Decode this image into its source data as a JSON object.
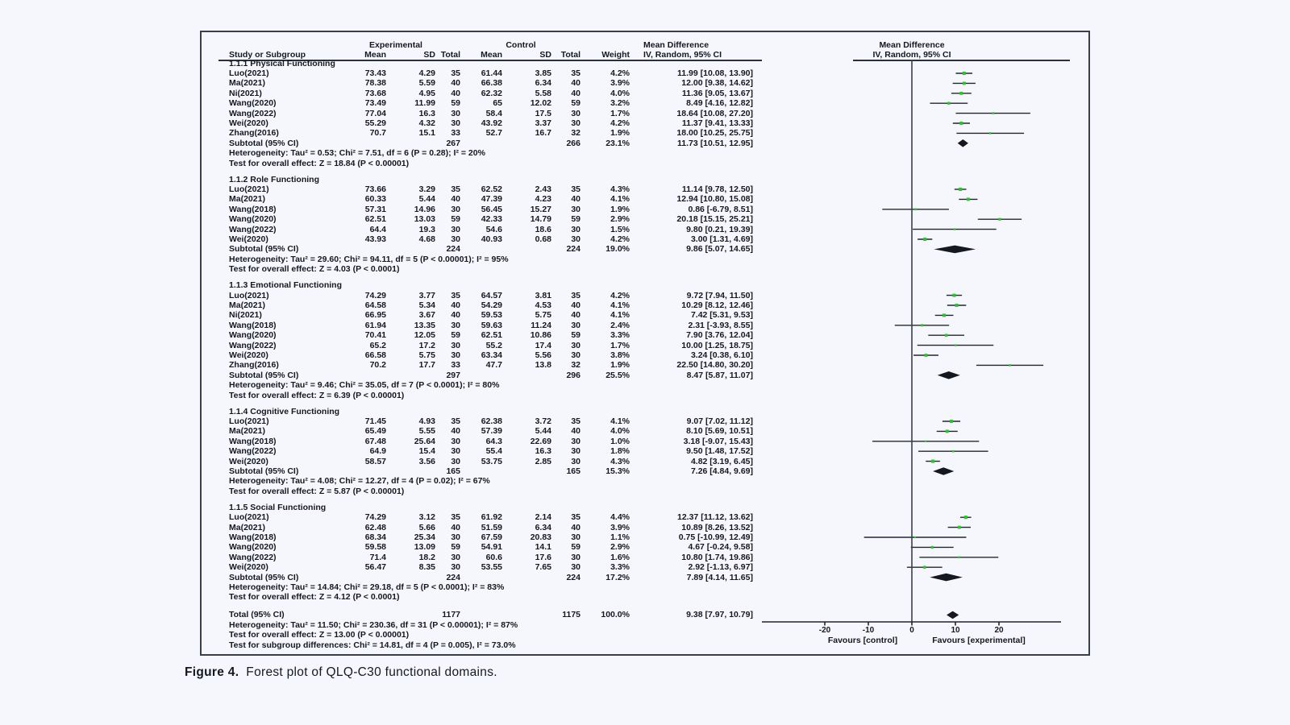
{
  "caption": {
    "label": "Figure 4.",
    "text": "Forest plot of QLQ-C30 functional domains."
  },
  "header": {
    "group_experimental": "Experimental",
    "group_control": "Control",
    "col_study": "Study or Subgroup",
    "col_mean": "Mean",
    "col_sd": "SD",
    "col_total": "Total",
    "col_weight": "Weight",
    "col_md_line1": "Mean Difference",
    "col_md_line2": "IV, Random, 95% CI",
    "plot_md_line1": "Mean Difference",
    "plot_md_line2": "IV, Random, 95% CI"
  },
  "colors": {
    "marker": "#2bc42b",
    "diamond": "#15181e",
    "ci_line": "#23272c",
    "axis": "#3a4046",
    "text": "#15181e",
    "background": "#f5f7fc"
  },
  "chart_data": {
    "type": "forest",
    "effect_measure": "Mean Difference IV, Random, 95% CI",
    "axis": {
      "ticks": [
        -20,
        -10,
        0,
        10,
        20
      ],
      "min": -34,
      "max": 34,
      "favours_left": "Favours [control]",
      "favours_right": "Favours [experimental]"
    },
    "sections": [
      {
        "name": "1.1.1 Physical Functioning",
        "studies": [
          {
            "study": "Luo(2021)",
            "mean_e": "73.43",
            "sd_e": "4.29",
            "total_e": "35",
            "mean_c": "61.44",
            "sd_c": "3.85",
            "total_c": "35",
            "weight": "4.2%",
            "md_text": "11.99 [10.08, 13.90]",
            "est": 11.99,
            "lo": 10.08,
            "hi": 13.9,
            "w": 4.2
          },
          {
            "study": "Ma(2021)",
            "mean_e": "78.38",
            "sd_e": "5.59",
            "total_e": "40",
            "mean_c": "66.38",
            "sd_c": "6.34",
            "total_c": "40",
            "weight": "3.9%",
            "md_text": "12.00 [9.38, 14.62]",
            "est": 12.0,
            "lo": 9.38,
            "hi": 14.62,
            "w": 3.9
          },
          {
            "study": "Ni(2021)",
            "mean_e": "73.68",
            "sd_e": "4.95",
            "total_e": "40",
            "mean_c": "62.32",
            "sd_c": "5.58",
            "total_c": "40",
            "weight": "4.0%",
            "md_text": "11.36 [9.05, 13.67]",
            "est": 11.36,
            "lo": 9.05,
            "hi": 13.67,
            "w": 4.0
          },
          {
            "study": "Wang(2020)",
            "mean_e": "73.49",
            "sd_e": "11.99",
            "total_e": "59",
            "mean_c": "65",
            "sd_c": "12.02",
            "total_c": "59",
            "weight": "3.2%",
            "md_text": "8.49 [4.16, 12.82]",
            "est": 8.49,
            "lo": 4.16,
            "hi": 12.82,
            "w": 3.2
          },
          {
            "study": "Wang(2022)",
            "mean_e": "77.04",
            "sd_e": "16.3",
            "total_e": "30",
            "mean_c": "58.4",
            "sd_c": "17.5",
            "total_c": "30",
            "weight": "1.7%",
            "md_text": "18.64 [10.08, 27.20]",
            "est": 18.64,
            "lo": 10.08,
            "hi": 27.2,
            "w": 1.7
          },
          {
            "study": "Wei(2020)",
            "mean_e": "55.29",
            "sd_e": "4.32",
            "total_e": "30",
            "mean_c": "43.92",
            "sd_c": "3.37",
            "total_c": "30",
            "weight": "4.2%",
            "md_text": "11.37 [9.41, 13.33]",
            "est": 11.37,
            "lo": 9.41,
            "hi": 13.33,
            "w": 4.2
          },
          {
            "study": "Zhang(2016)",
            "mean_e": "70.7",
            "sd_e": "15.1",
            "total_e": "33",
            "mean_c": "52.7",
            "sd_c": "16.7",
            "total_c": "32",
            "weight": "1.9%",
            "md_text": "18.00 [10.25, 25.75]",
            "est": 18.0,
            "lo": 10.25,
            "hi": 25.75,
            "w": 1.9
          }
        ],
        "subtotal": {
          "label": "Subtotal (95% CI)",
          "total_e": "267",
          "total_c": "266",
          "weight": "23.1%",
          "md_text": "11.73 [10.51, 12.95]",
          "est": 11.73,
          "lo": 10.51,
          "hi": 12.95
        },
        "heterogeneity": "Heterogeneity: Tau² = 0.53; Chi² = 7.51, df = 6 (P = 0.28); I² = 20%",
        "test": "Test for overall effect: Z = 18.84 (P < 0.00001)"
      },
      {
        "name": "1.1.2 Role Functioning",
        "studies": [
          {
            "study": "Luo(2021)",
            "mean_e": "73.66",
            "sd_e": "3.29",
            "total_e": "35",
            "mean_c": "62.52",
            "sd_c": "2.43",
            "total_c": "35",
            "weight": "4.3%",
            "md_text": "11.14 [9.78, 12.50]",
            "est": 11.14,
            "lo": 9.78,
            "hi": 12.5,
            "w": 4.3
          },
          {
            "study": "Ma(2021)",
            "mean_e": "60.33",
            "sd_e": "5.44",
            "total_e": "40",
            "mean_c": "47.39",
            "sd_c": "4.23",
            "total_c": "40",
            "weight": "4.1%",
            "md_text": "12.94 [10.80, 15.08]",
            "est": 12.94,
            "lo": 10.8,
            "hi": 15.08,
            "w": 4.1
          },
          {
            "study": "Wang(2018)",
            "mean_e": "57.31",
            "sd_e": "14.96",
            "total_e": "30",
            "mean_c": "56.45",
            "sd_c": "15.27",
            "total_c": "30",
            "weight": "1.9%",
            "md_text": "0.86 [-6.79, 8.51]",
            "est": 0.86,
            "lo": -6.79,
            "hi": 8.51,
            "w": 1.9
          },
          {
            "study": "Wang(2020)",
            "mean_e": "62.51",
            "sd_e": "13.03",
            "total_e": "59",
            "mean_c": "42.33",
            "sd_c": "14.79",
            "total_c": "59",
            "weight": "2.9%",
            "md_text": "20.18 [15.15, 25.21]",
            "est": 20.18,
            "lo": 15.15,
            "hi": 25.21,
            "w": 2.9
          },
          {
            "study": "Wang(2022)",
            "mean_e": "64.4",
            "sd_e": "19.3",
            "total_e": "30",
            "mean_c": "54.6",
            "sd_c": "18.6",
            "total_c": "30",
            "weight": "1.5%",
            "md_text": "9.80 [0.21, 19.39]",
            "est": 9.8,
            "lo": 0.21,
            "hi": 19.39,
            "w": 1.5
          },
          {
            "study": "Wei(2020)",
            "mean_e": "43.93",
            "sd_e": "4.68",
            "total_e": "30",
            "mean_c": "40.93",
            "sd_c": "0.68",
            "total_c": "30",
            "weight": "4.2%",
            "md_text": "3.00 [1.31, 4.69]",
            "est": 3.0,
            "lo": 1.31,
            "hi": 4.69,
            "w": 4.2
          }
        ],
        "subtotal": {
          "label": "Subtotal (95% CI)",
          "total_e": "224",
          "total_c": "224",
          "weight": "19.0%",
          "md_text": "9.86 [5.07, 14.65]",
          "est": 9.86,
          "lo": 5.07,
          "hi": 14.65
        },
        "heterogeneity": "Heterogeneity: Tau² = 29.60; Chi² = 94.11, df = 5 (P < 0.00001); I² = 95%",
        "test": "Test for overall effect: Z = 4.03 (P < 0.0001)"
      },
      {
        "name": "1.1.3 Emotional Functioning",
        "studies": [
          {
            "study": "Luo(2021)",
            "mean_e": "74.29",
            "sd_e": "3.77",
            "total_e": "35",
            "mean_c": "64.57",
            "sd_c": "3.81",
            "total_c": "35",
            "weight": "4.2%",
            "md_text": "9.72 [7.94, 11.50]",
            "est": 9.72,
            "lo": 7.94,
            "hi": 11.5,
            "w": 4.2
          },
          {
            "study": "Ma(2021)",
            "mean_e": "64.58",
            "sd_e": "5.34",
            "total_e": "40",
            "mean_c": "54.29",
            "sd_c": "4.53",
            "total_c": "40",
            "weight": "4.1%",
            "md_text": "10.29 [8.12, 12.46]",
            "est": 10.29,
            "lo": 8.12,
            "hi": 12.46,
            "w": 4.1
          },
          {
            "study": "Ni(2021)",
            "mean_e": "66.95",
            "sd_e": "3.67",
            "total_e": "40",
            "mean_c": "59.53",
            "sd_c": "5.75",
            "total_c": "40",
            "weight": "4.1%",
            "md_text": "7.42 [5.31, 9.53]",
            "est": 7.42,
            "lo": 5.31,
            "hi": 9.53,
            "w": 4.1
          },
          {
            "study": "Wang(2018)",
            "mean_e": "61.94",
            "sd_e": "13.35",
            "total_e": "30",
            "mean_c": "59.63",
            "sd_c": "11.24",
            "total_c": "30",
            "weight": "2.4%",
            "md_text": "2.31 [-3.93, 8.55]",
            "est": 2.31,
            "lo": -3.93,
            "hi": 8.55,
            "w": 2.4
          },
          {
            "study": "Wang(2020)",
            "mean_e": "70.41",
            "sd_e": "12.05",
            "total_e": "59",
            "mean_c": "62.51",
            "sd_c": "10.86",
            "total_c": "59",
            "weight": "3.3%",
            "md_text": "7.90 [3.76, 12.04]",
            "est": 7.9,
            "lo": 3.76,
            "hi": 12.04,
            "w": 3.3
          },
          {
            "study": "Wang(2022)",
            "mean_e": "65.2",
            "sd_e": "17.2",
            "total_e": "30",
            "mean_c": "55.2",
            "sd_c": "17.4",
            "total_c": "30",
            "weight": "1.7%",
            "md_text": "10.00 [1.25, 18.75]",
            "est": 10.0,
            "lo": 1.25,
            "hi": 18.75,
            "w": 1.7
          },
          {
            "study": "Wei(2020)",
            "mean_e": "66.58",
            "sd_e": "5.75",
            "total_e": "30",
            "mean_c": "63.34",
            "sd_c": "5.56",
            "total_c": "30",
            "weight": "3.8%",
            "md_text": "3.24 [0.38, 6.10]",
            "est": 3.24,
            "lo": 0.38,
            "hi": 6.1,
            "w": 3.8
          },
          {
            "study": "Zhang(2016)",
            "mean_e": "70.2",
            "sd_e": "17.7",
            "total_e": "33",
            "mean_c": "47.7",
            "sd_c": "13.8",
            "total_c": "32",
            "weight": "1.9%",
            "md_text": "22.50 [14.80, 30.20]",
            "est": 22.5,
            "lo": 14.8,
            "hi": 30.2,
            "w": 1.9
          }
        ],
        "subtotal": {
          "label": "Subtotal (95% CI)",
          "total_e": "297",
          "total_c": "296",
          "weight": "25.5%",
          "md_text": "8.47 [5.87, 11.07]",
          "est": 8.47,
          "lo": 5.87,
          "hi": 11.07
        },
        "heterogeneity": "Heterogeneity: Tau² = 9.46; Chi² = 35.05, df = 7 (P < 0.0001); I² = 80%",
        "test": "Test for overall effect: Z = 6.39 (P < 0.00001)"
      },
      {
        "name": "1.1.4 Cognitive Functioning",
        "studies": [
          {
            "study": "Luo(2021)",
            "mean_e": "71.45",
            "sd_e": "4.93",
            "total_e": "35",
            "mean_c": "62.38",
            "sd_c": "3.72",
            "total_c": "35",
            "weight": "4.1%",
            "md_text": "9.07 [7.02, 11.12]",
            "est": 9.07,
            "lo": 7.02,
            "hi": 11.12,
            "w": 4.1
          },
          {
            "study": "Ma(2021)",
            "mean_e": "65.49",
            "sd_e": "5.55",
            "total_e": "40",
            "mean_c": "57.39",
            "sd_c": "5.44",
            "total_c": "40",
            "weight": "4.0%",
            "md_text": "8.10 [5.69, 10.51]",
            "est": 8.1,
            "lo": 5.69,
            "hi": 10.51,
            "w": 4.0
          },
          {
            "study": "Wang(2018)",
            "mean_e": "67.48",
            "sd_e": "25.64",
            "total_e": "30",
            "mean_c": "64.3",
            "sd_c": "22.69",
            "total_c": "30",
            "weight": "1.0%",
            "md_text": "3.18 [-9.07, 15.43]",
            "est": 3.18,
            "lo": -9.07,
            "hi": 15.43,
            "w": 1.0
          },
          {
            "study": "Wang(2022)",
            "mean_e": "64.9",
            "sd_e": "15.4",
            "total_e": "30",
            "mean_c": "55.4",
            "sd_c": "16.3",
            "total_c": "30",
            "weight": "1.8%",
            "md_text": "9.50 [1.48, 17.52]",
            "est": 9.5,
            "lo": 1.48,
            "hi": 17.52,
            "w": 1.8
          },
          {
            "study": "Wei(2020)",
            "mean_e": "58.57",
            "sd_e": "3.56",
            "total_e": "30",
            "mean_c": "53.75",
            "sd_c": "2.85",
            "total_c": "30",
            "weight": "4.3%",
            "md_text": "4.82 [3.19, 6.45]",
            "est": 4.82,
            "lo": 3.19,
            "hi": 6.45,
            "w": 4.3
          }
        ],
        "subtotal": {
          "label": "Subtotal (95% CI)",
          "total_e": "165",
          "total_c": "165",
          "weight": "15.3%",
          "md_text": "7.26 [4.84, 9.69]",
          "est": 7.26,
          "lo": 4.84,
          "hi": 9.69
        },
        "heterogeneity": "Heterogeneity: Tau² = 4.08; Chi² = 12.27, df = 4 (P = 0.02); I² = 67%",
        "test": "Test for overall effect: Z = 5.87 (P < 0.00001)"
      },
      {
        "name": "1.1.5 Social Functioning",
        "studies": [
          {
            "study": "Luo(2021)",
            "mean_e": "74.29",
            "sd_e": "3.12",
            "total_e": "35",
            "mean_c": "61.92",
            "sd_c": "2.14",
            "total_c": "35",
            "weight": "4.4%",
            "md_text": "12.37 [11.12, 13.62]",
            "est": 12.37,
            "lo": 11.12,
            "hi": 13.62,
            "w": 4.4
          },
          {
            "study": "Ma(2021)",
            "mean_e": "62.48",
            "sd_e": "5.66",
            "total_e": "40",
            "mean_c": "51.59",
            "sd_c": "6.34",
            "total_c": "40",
            "weight": "3.9%",
            "md_text": "10.89 [8.26, 13.52]",
            "est": 10.89,
            "lo": 8.26,
            "hi": 13.52,
            "w": 3.9
          },
          {
            "study": "Wang(2018)",
            "mean_e": "68.34",
            "sd_e": "25.34",
            "total_e": "30",
            "mean_c": "67.59",
            "sd_c": "20.83",
            "total_c": "30",
            "weight": "1.1%",
            "md_text": "0.75 [-10.99, 12.49]",
            "est": 0.75,
            "lo": -10.99,
            "hi": 12.49,
            "w": 1.1
          },
          {
            "study": "Wang(2020)",
            "mean_e": "59.58",
            "sd_e": "13.09",
            "total_e": "59",
            "mean_c": "54.91",
            "sd_c": "14.1",
            "total_c": "59",
            "weight": "2.9%",
            "md_text": "4.67 [-0.24, 9.58]",
            "est": 4.67,
            "lo": -0.24,
            "hi": 9.58,
            "w": 2.9
          },
          {
            "study": "Wang(2022)",
            "mean_e": "71.4",
            "sd_e": "18.2",
            "total_e": "30",
            "mean_c": "60.6",
            "sd_c": "17.6",
            "total_c": "30",
            "weight": "1.6%",
            "md_text": "10.80 [1.74, 19.86]",
            "est": 10.8,
            "lo": 1.74,
            "hi": 19.86,
            "w": 1.6
          },
          {
            "study": "Wei(2020)",
            "mean_e": "56.47",
            "sd_e": "8.35",
            "total_e": "30",
            "mean_c": "53.55",
            "sd_c": "7.65",
            "total_c": "30",
            "weight": "3.3%",
            "md_text": "2.92 [-1.13, 6.97]",
            "est": 2.92,
            "lo": -1.13,
            "hi": 6.97,
            "w": 3.3
          }
        ],
        "subtotal": {
          "label": "Subtotal (95% CI)",
          "total_e": "224",
          "total_c": "224",
          "weight": "17.2%",
          "md_text": "7.89 [4.14, 11.65]",
          "est": 7.89,
          "lo": 4.14,
          "hi": 11.65
        },
        "heterogeneity": "Heterogeneity: Tau² = 14.84; Chi² = 29.18, df = 5 (P < 0.0001); I² = 83%",
        "test": "Test for overall effect: Z = 4.12 (P < 0.0001)"
      }
    ],
    "total": {
      "label": "Total (95% CI)",
      "total_e": "1177",
      "total_c": "1175",
      "weight": "100.0%",
      "md_text": "9.38 [7.97, 10.79]",
      "est": 9.38,
      "lo": 7.97,
      "hi": 10.79,
      "heterogeneity": "Heterogeneity: Tau² = 11.50; Chi² = 230.36, df = 31 (P < 0.00001); I² = 87%",
      "test": "Test for overall effect: Z = 13.00 (P < 0.00001)",
      "subgroup": "Test for subgroup differences: Chi² = 14.81, df = 4 (P = 0.005), I² = 73.0%"
    }
  }
}
